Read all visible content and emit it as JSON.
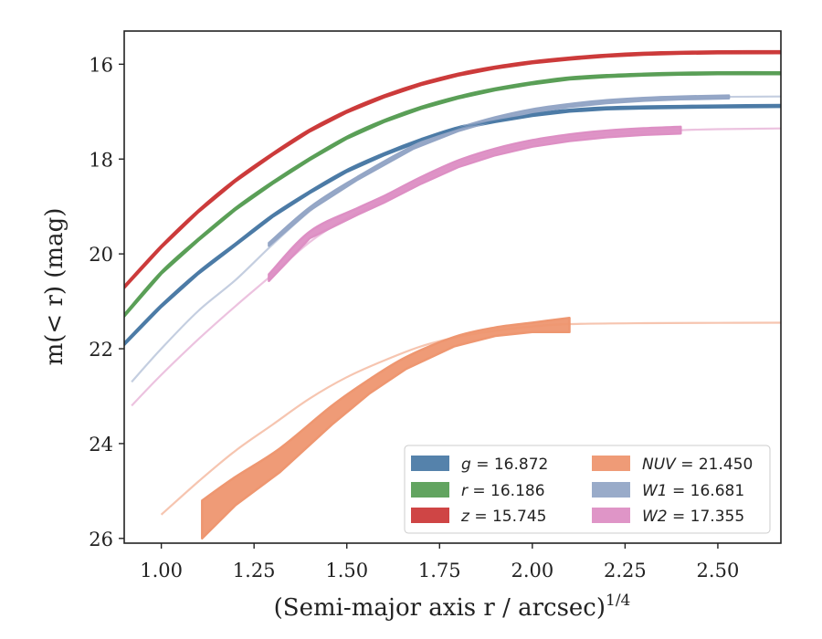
{
  "chart_data": {
    "type": "line",
    "title": "",
    "xlabel": "(Semi-major axis r / arcsec)",
    "xlabel_sup": "1/4",
    "ylabel": "m(< r) (mag)",
    "xlim": [
      0.9,
      2.67
    ],
    "ylim": [
      26.1,
      15.3
    ],
    "y_inverted": true,
    "x_ticks": [
      "1.00",
      "1.25",
      "1.50",
      "1.75",
      "2.00",
      "2.25",
      "2.50"
    ],
    "x_tick_values": [
      1.0,
      1.25,
      1.5,
      1.75,
      2.0,
      2.25,
      2.5
    ],
    "y_ticks": [
      "16",
      "18",
      "20",
      "22",
      "24",
      "26"
    ],
    "y_tick_values": [
      16,
      18,
      20,
      22,
      24,
      26
    ],
    "grid": false,
    "legend_placement": "lower-right",
    "series": [
      {
        "name": "g = 16.872",
        "label_italic": "g",
        "label_value": "= 16.872",
        "color": "#4c7ba6",
        "fit": [
          [
            0.9,
            21.9
          ],
          [
            1.0,
            21.1
          ],
          [
            1.1,
            20.4
          ],
          [
            1.2,
            19.8
          ],
          [
            1.3,
            19.2
          ],
          [
            1.4,
            18.7
          ],
          [
            1.5,
            18.25
          ],
          [
            1.6,
            17.9
          ],
          [
            1.7,
            17.6
          ],
          [
            1.8,
            17.35
          ],
          [
            1.9,
            17.2
          ],
          [
            2.0,
            17.07
          ],
          [
            2.1,
            16.98
          ],
          [
            2.2,
            16.93
          ],
          [
            2.3,
            16.91
          ],
          [
            2.4,
            16.9
          ],
          [
            2.5,
            16.89
          ],
          [
            2.67,
            16.88
          ]
        ],
        "data": [
          [
            0.9,
            21.9
          ],
          [
            1.0,
            21.1
          ],
          [
            1.1,
            20.4
          ],
          [
            1.2,
            19.8
          ],
          [
            1.3,
            19.2
          ],
          [
            1.4,
            18.7
          ],
          [
            1.5,
            18.25
          ],
          [
            1.6,
            17.9
          ],
          [
            1.7,
            17.6
          ],
          [
            1.8,
            17.35
          ],
          [
            1.9,
            17.2
          ],
          [
            2.0,
            17.07
          ],
          [
            2.1,
            16.98
          ],
          [
            2.2,
            16.93
          ],
          [
            2.3,
            16.91
          ],
          [
            2.4,
            16.9
          ],
          [
            2.5,
            16.89
          ],
          [
            2.67,
            16.88
          ]
        ],
        "band": 0.04
      },
      {
        "name": "r = 16.186",
        "label_italic": "r",
        "label_value": "= 16.186",
        "color": "#5a9f57",
        "fit": [
          [
            0.9,
            21.3
          ],
          [
            1.0,
            20.4
          ],
          [
            1.1,
            19.7
          ],
          [
            1.2,
            19.05
          ],
          [
            1.3,
            18.5
          ],
          [
            1.4,
            18.0
          ],
          [
            1.5,
            17.55
          ],
          [
            1.6,
            17.2
          ],
          [
            1.7,
            16.92
          ],
          [
            1.8,
            16.7
          ],
          [
            1.9,
            16.53
          ],
          [
            2.0,
            16.4
          ],
          [
            2.1,
            16.3
          ],
          [
            2.2,
            16.25
          ],
          [
            2.3,
            16.22
          ],
          [
            2.4,
            16.2
          ],
          [
            2.5,
            16.19
          ],
          [
            2.67,
            16.19
          ]
        ],
        "data": [
          [
            0.9,
            21.3
          ],
          [
            1.0,
            20.4
          ],
          [
            1.1,
            19.7
          ],
          [
            1.2,
            19.05
          ],
          [
            1.3,
            18.5
          ],
          [
            1.4,
            18.0
          ],
          [
            1.5,
            17.55
          ],
          [
            1.6,
            17.2
          ],
          [
            1.7,
            16.92
          ],
          [
            1.8,
            16.7
          ],
          [
            1.9,
            16.53
          ],
          [
            2.0,
            16.4
          ],
          [
            2.1,
            16.3
          ],
          [
            2.2,
            16.25
          ],
          [
            2.3,
            16.22
          ],
          [
            2.4,
            16.2
          ],
          [
            2.5,
            16.19
          ],
          [
            2.67,
            16.19
          ]
        ],
        "band": 0.04
      },
      {
        "name": "z = 15.745",
        "label_italic": "z",
        "label_value": "= 15.745",
        "color": "#cc3b3b",
        "fit": [
          [
            0.9,
            20.7
          ],
          [
            1.0,
            19.85
          ],
          [
            1.1,
            19.1
          ],
          [
            1.2,
            18.45
          ],
          [
            1.3,
            17.9
          ],
          [
            1.4,
            17.4
          ],
          [
            1.5,
            17.0
          ],
          [
            1.6,
            16.68
          ],
          [
            1.7,
            16.42
          ],
          [
            1.8,
            16.22
          ],
          [
            1.9,
            16.07
          ],
          [
            2.0,
            15.96
          ],
          [
            2.1,
            15.88
          ],
          [
            2.2,
            15.82
          ],
          [
            2.3,
            15.78
          ],
          [
            2.4,
            15.76
          ],
          [
            2.5,
            15.75
          ],
          [
            2.67,
            15.745
          ]
        ],
        "data": [
          [
            0.9,
            20.7
          ],
          [
            1.0,
            19.85
          ],
          [
            1.1,
            19.1
          ],
          [
            1.2,
            18.45
          ],
          [
            1.3,
            17.9
          ],
          [
            1.4,
            17.4
          ],
          [
            1.5,
            17.0
          ],
          [
            1.6,
            16.68
          ],
          [
            1.7,
            16.42
          ],
          [
            1.8,
            16.22
          ],
          [
            1.9,
            16.07
          ],
          [
            2.0,
            15.96
          ],
          [
            2.1,
            15.88
          ],
          [
            2.2,
            15.82
          ],
          [
            2.3,
            15.78
          ],
          [
            2.4,
            15.76
          ],
          [
            2.5,
            15.75
          ],
          [
            2.67,
            15.745
          ]
        ],
        "band": 0.04
      },
      {
        "name": "NUV = 21.450",
        "label_italic": "NUV",
        "label_value": "= 21.450",
        "color": "#ee9670",
        "fit": [
          [
            1.0,
            25.5
          ],
          [
            1.1,
            24.8
          ],
          [
            1.2,
            24.15
          ],
          [
            1.3,
            23.6
          ],
          [
            1.4,
            23.05
          ],
          [
            1.5,
            22.6
          ],
          [
            1.6,
            22.25
          ],
          [
            1.7,
            21.95
          ],
          [
            1.8,
            21.75
          ],
          [
            1.9,
            21.62
          ],
          [
            2.0,
            21.53
          ],
          [
            2.1,
            21.48
          ],
          [
            2.3,
            21.46
          ],
          [
            2.5,
            21.455
          ],
          [
            2.67,
            21.45
          ]
        ],
        "data": [
          [
            1.11,
            25.6
          ],
          [
            1.2,
            25.0
          ],
          [
            1.32,
            24.35
          ],
          [
            1.46,
            23.4
          ],
          [
            1.56,
            22.8
          ],
          [
            1.66,
            22.3
          ],
          [
            1.79,
            21.85
          ],
          [
            1.9,
            21.64
          ],
          [
            2.0,
            21.55
          ],
          [
            2.1,
            21.5
          ]
        ],
        "band_widths": [
          0.8,
          0.6,
          0.5,
          0.4,
          0.3,
          0.25,
          0.2,
          0.18,
          0.2,
          0.3
        ],
        "band": 0.3
      },
      {
        "name": "W1 = 16.681",
        "label_italic": "W1",
        "label_value": "= 16.681",
        "color": "#94a6c6",
        "fit": [
          [
            0.92,
            22.7
          ],
          [
            1.0,
            22.0
          ],
          [
            1.1,
            21.2
          ],
          [
            1.2,
            20.55
          ],
          [
            1.3,
            19.8
          ],
          [
            1.4,
            19.1
          ],
          [
            1.5,
            18.55
          ],
          [
            1.6,
            18.1
          ],
          [
            1.7,
            17.7
          ],
          [
            1.8,
            17.38
          ],
          [
            1.9,
            17.15
          ],
          [
            2.0,
            16.98
          ],
          [
            2.1,
            16.87
          ],
          [
            2.2,
            16.79
          ],
          [
            2.3,
            16.74
          ],
          [
            2.4,
            16.71
          ],
          [
            2.5,
            16.69
          ],
          [
            2.67,
            16.681
          ]
        ],
        "data": [
          [
            1.29,
            19.8
          ],
          [
            1.4,
            19.05
          ],
          [
            1.53,
            18.4
          ],
          [
            1.68,
            17.75
          ],
          [
            1.8,
            17.38
          ],
          [
            1.9,
            17.15
          ],
          [
            2.0,
            16.98
          ],
          [
            2.1,
            16.87
          ],
          [
            2.2,
            16.79
          ],
          [
            2.3,
            16.74
          ],
          [
            2.4,
            16.71
          ],
          [
            2.53,
            16.69
          ]
        ],
        "band": 0.06
      },
      {
        "name": "W2 = 17.355",
        "label_italic": "W2",
        "label_value": "= 17.355",
        "color": "#dd8fc4",
        "fit": [
          [
            0.92,
            23.2
          ],
          [
            1.0,
            22.55
          ],
          [
            1.1,
            21.8
          ],
          [
            1.2,
            21.1
          ],
          [
            1.29,
            20.5
          ],
          [
            1.4,
            19.75
          ],
          [
            1.5,
            19.25
          ],
          [
            1.6,
            18.85
          ],
          [
            1.7,
            18.45
          ],
          [
            1.8,
            18.1
          ],
          [
            1.9,
            17.85
          ],
          [
            2.0,
            17.67
          ],
          [
            2.1,
            17.55
          ],
          [
            2.2,
            17.47
          ],
          [
            2.3,
            17.42
          ],
          [
            2.4,
            17.39
          ],
          [
            2.5,
            17.37
          ],
          [
            2.67,
            17.355
          ]
        ],
        "data": [
          [
            1.29,
            20.5
          ],
          [
            1.4,
            19.6
          ],
          [
            1.53,
            19.1
          ],
          [
            1.6,
            18.85
          ],
          [
            1.7,
            18.45
          ],
          [
            1.8,
            18.1
          ],
          [
            1.9,
            17.85
          ],
          [
            2.0,
            17.67
          ],
          [
            2.1,
            17.55
          ],
          [
            2.2,
            17.47
          ],
          [
            2.3,
            17.42
          ],
          [
            2.4,
            17.39
          ]
        ],
        "band": 0.14
      }
    ]
  }
}
